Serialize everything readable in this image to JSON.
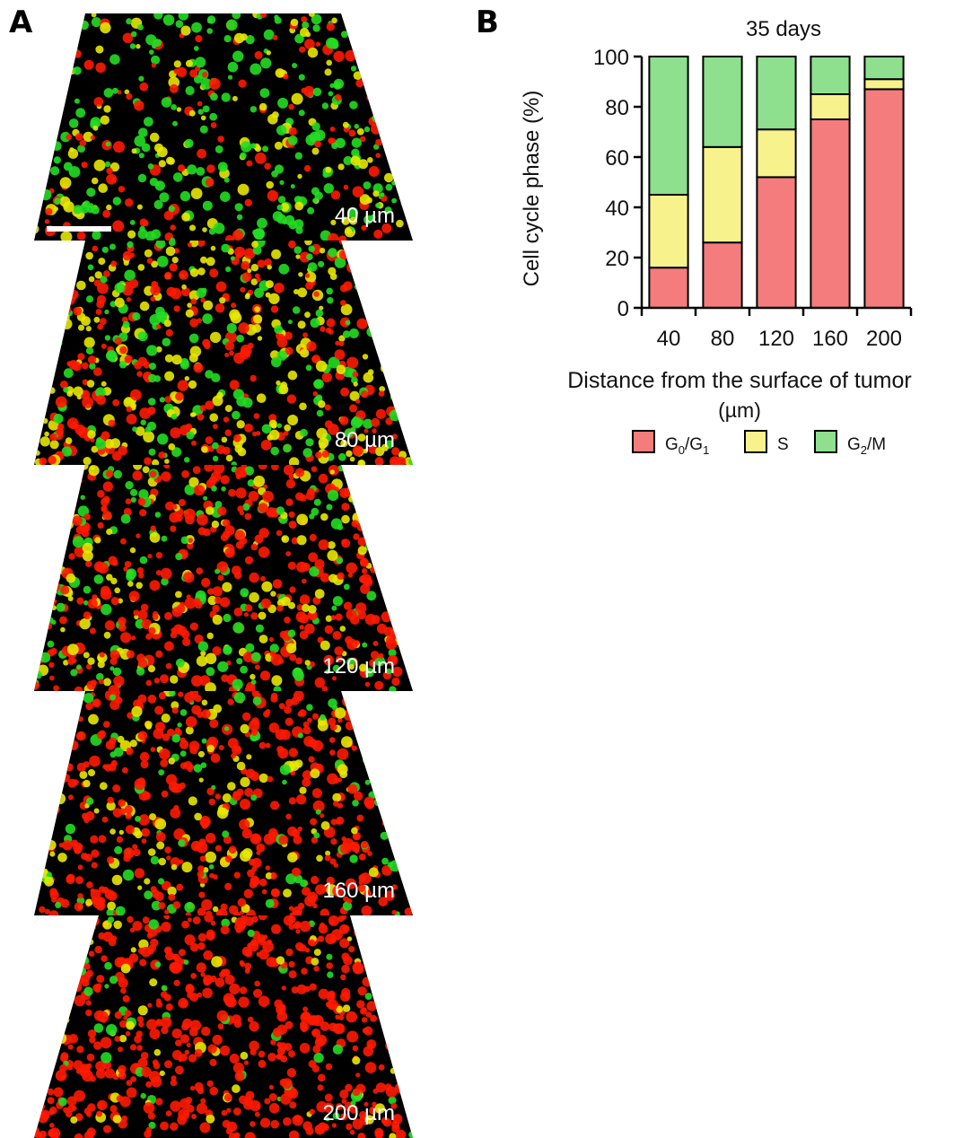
{
  "panel_a": {
    "letter": "A",
    "slices": [
      {
        "label": "40 µm",
        "depth_um": 40
      },
      {
        "label": "80 µm",
        "depth_um": 80
      },
      {
        "label": "120 µm",
        "depth_um": 120
      },
      {
        "label": "160 µm",
        "depth_um": 160
      },
      {
        "label": "200 µm",
        "depth_um": 200
      }
    ],
    "colors": {
      "g0g1": "#ff1a00",
      "s": "#e8e800",
      "g2m": "#22dd22",
      "background": "#000000"
    }
  },
  "panel_b": {
    "letter": "B"
  },
  "chart_data": {
    "type": "bar",
    "stacked": true,
    "title": "35 days",
    "xlabel": "Distance from the surface of tumor",
    "xlabel_unit": "(µm)",
    "ylabel": "Cell cycle phase (%)",
    "categories": [
      "40",
      "80",
      "120",
      "160",
      "200"
    ],
    "ylim": [
      0,
      100
    ],
    "yticks": [
      0,
      20,
      40,
      60,
      80,
      100
    ],
    "series": [
      {
        "name": "G0/G1",
        "color": "#f47c7c",
        "values": [
          16,
          26,
          52,
          75,
          87
        ]
      },
      {
        "name": "S",
        "color": "#f8f28c",
        "values": [
          29,
          38,
          19,
          10,
          4
        ]
      },
      {
        "name": "G2/M",
        "color": "#8ee08e",
        "values": [
          55,
          36,
          29,
          15,
          9
        ]
      }
    ],
    "legend": {
      "placement": "bottom",
      "items": [
        {
          "text_main": "G",
          "sub1": "0",
          "mid": "/G",
          "sub2": "1"
        },
        {
          "text_main": "S",
          "sub1": "",
          "mid": "",
          "sub2": ""
        },
        {
          "text_main": "G",
          "sub1": "2",
          "mid": "/M",
          "sub2": ""
        }
      ]
    }
  }
}
